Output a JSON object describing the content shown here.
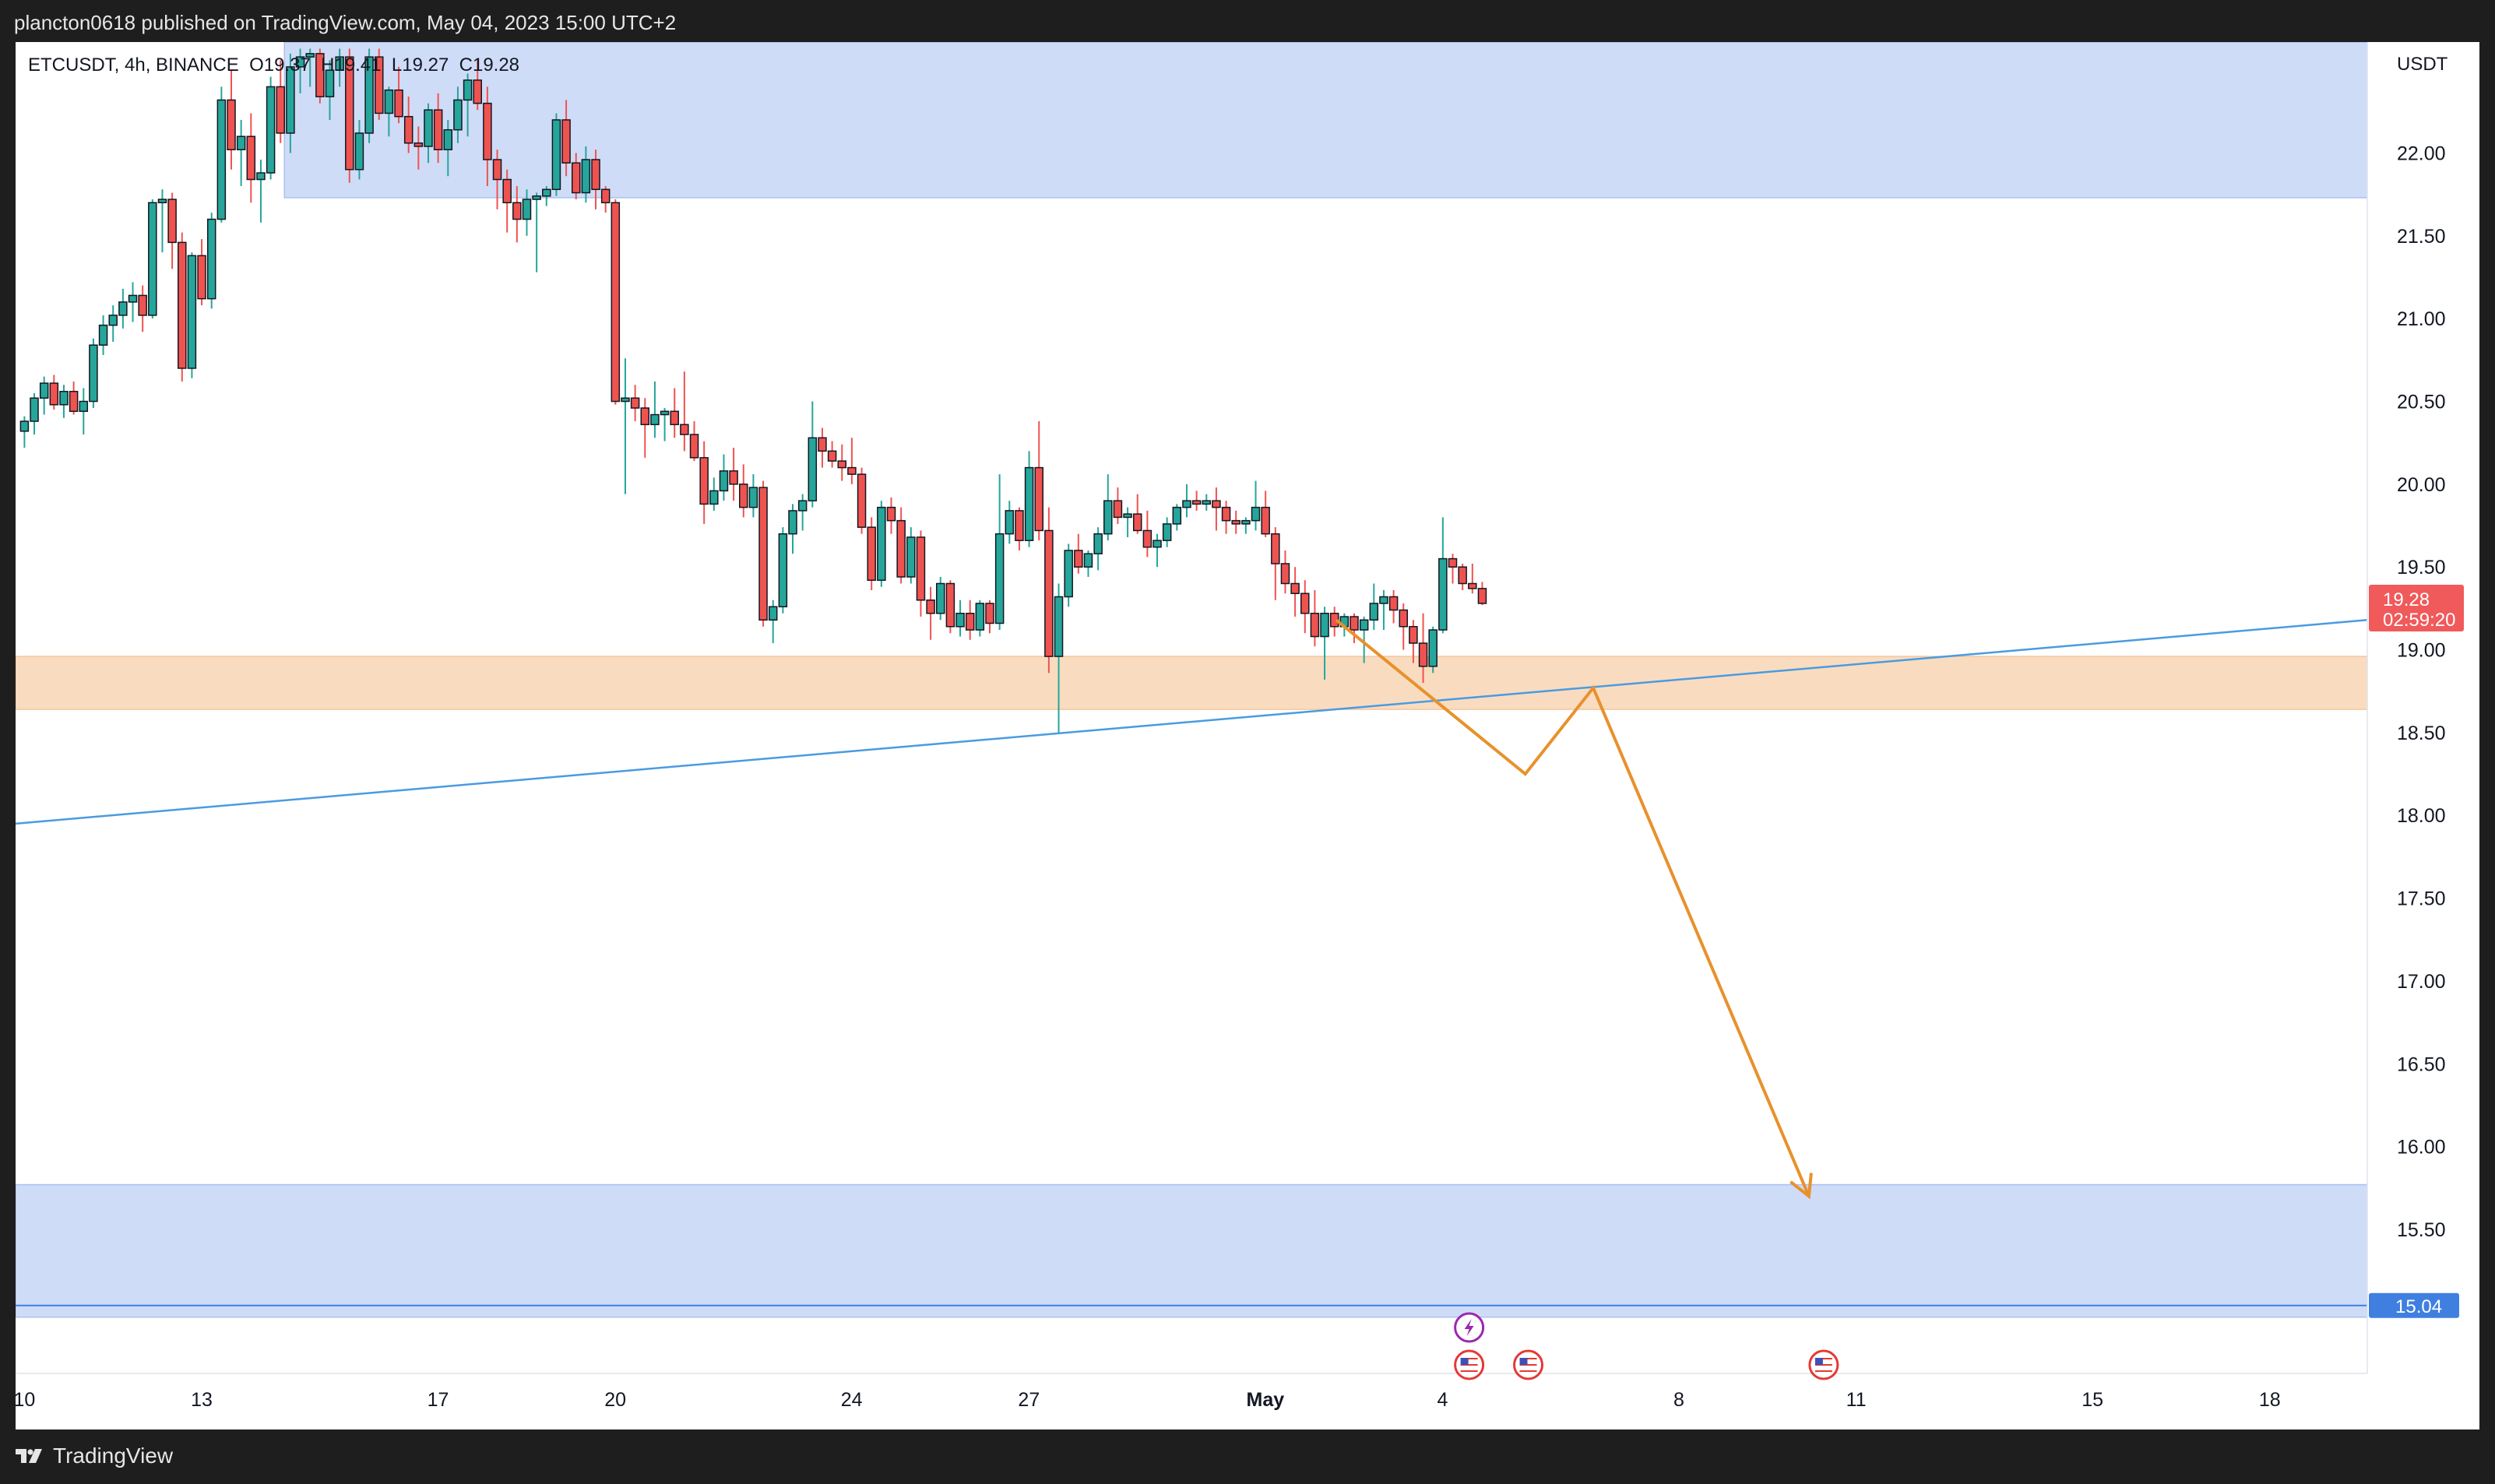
{
  "header": {
    "published_by": "plancton0618 published on TradingView.com, May 04, 2023 15:00 UTC+2"
  },
  "footer": {
    "brand": "TradingView"
  },
  "colors": {
    "up": "#26a69a",
    "down": "#ef5350",
    "zone_blue": "#cfdcf7",
    "zone_orange": "#f9dcc0",
    "trend": "#4a9be0",
    "projection": "#e8912c",
    "price_tag": "#f05a5a",
    "level_tag": "#3f7fe0"
  },
  "chart_data": {
    "type": "candlestick",
    "symbol": "ETCUSDT",
    "interval": "4h",
    "exchange": "BINANCE",
    "ohlc_legend": {
      "open": "O19.37",
      "high": "H19.41",
      "low": "L19.27",
      "close": "C19.28"
    },
    "legend_text": {
      "symbol": "ETCUSDT, 4h, BINANCE",
      "open": "O19.37",
      "high": "H19.41",
      "low": "L19.27",
      "close": "C19.28"
    },
    "currency": "USDT",
    "y_range": [
      14.63,
      22.67
    ],
    "y_ticks": [
      "22.00",
      "21.50",
      "21.00",
      "20.50",
      "20.00",
      "19.50",
      "19.00",
      "18.50",
      "18.00",
      "17.50",
      "17.00",
      "16.50",
      "16.00",
      "15.50"
    ],
    "x_range": [
      -0.15,
      39.65
    ],
    "x_ticks": [
      {
        "label": "10",
        "day": 0
      },
      {
        "label": "13",
        "day": 3
      },
      {
        "label": "17",
        "day": 7
      },
      {
        "label": "20",
        "day": 10
      },
      {
        "label": "24",
        "day": 14
      },
      {
        "label": "27",
        "day": 17
      },
      {
        "label": "May",
        "day": 21,
        "bold": true
      },
      {
        "label": "4",
        "day": 24
      },
      {
        "label": "8",
        "day": 28
      },
      {
        "label": "11",
        "day": 31
      },
      {
        "label": "15",
        "day": 35
      },
      {
        "label": "18",
        "day": 38
      }
    ],
    "current_price": {
      "value": 19.28,
      "label": "19.28",
      "countdown": "02:59:20"
    },
    "level_line": {
      "value": 15.04,
      "label": "15.04"
    },
    "zones": [
      {
        "name": "supply-zone-top",
        "x_from": 4.4,
        "x_to": 39.65,
        "y_from": 21.73,
        "y_to": 22.67,
        "color": "#cfdcf7"
      },
      {
        "name": "support-zone-orange",
        "x_from": -0.15,
        "x_to": 39.65,
        "y_from": 18.64,
        "y_to": 18.96,
        "color": "#f9dcc0"
      },
      {
        "name": "demand-zone-bottom",
        "x_from": -0.15,
        "x_to": 39.65,
        "y_from": 14.97,
        "y_to": 15.77,
        "color": "#cfdcf7"
      }
    ],
    "trendline": {
      "from": {
        "day": -0.15,
        "price": 17.95
      },
      "to": {
        "day": 39.65,
        "price": 19.18
      }
    },
    "projection_path": [
      {
        "day": 22.2,
        "price": 19.18
      },
      {
        "day": 25.4,
        "price": 18.25
      },
      {
        "day": 26.55,
        "price": 18.77
      },
      {
        "day": 30.2,
        "price": 15.7
      }
    ],
    "event_icons": [
      {
        "name": "lightning-icon",
        "day": 24.45,
        "kind": "lightning"
      },
      {
        "name": "us-flag-icon",
        "day": 24.45,
        "kind": "flag"
      },
      {
        "name": "us-flag-icon",
        "day": 25.45,
        "kind": "flag"
      },
      {
        "name": "us-flag-icon",
        "day": 30.45,
        "kind": "flag"
      }
    ],
    "candles_start_day": 0.0,
    "candles_step_day": 0.1667,
    "candles": [
      [
        20.32,
        20.41,
        20.22,
        20.38
      ],
      [
        20.38,
        20.55,
        20.3,
        20.52
      ],
      [
        20.52,
        20.65,
        20.42,
        20.61
      ],
      [
        20.61,
        20.66,
        20.45,
        20.48
      ],
      [
        20.48,
        20.6,
        20.4,
        20.56
      ],
      [
        20.56,
        20.62,
        20.42,
        20.44
      ],
      [
        20.44,
        20.58,
        20.3,
        20.5
      ],
      [
        20.5,
        20.88,
        20.46,
        20.84
      ],
      [
        20.84,
        21.02,
        20.78,
        20.96
      ],
      [
        20.96,
        21.08,
        20.86,
        21.02
      ],
      [
        21.02,
        21.18,
        20.94,
        21.1
      ],
      [
        21.1,
        21.22,
        20.98,
        21.14
      ],
      [
        21.14,
        21.2,
        20.92,
        21.02
      ],
      [
        21.02,
        21.72,
        21.0,
        21.7
      ],
      [
        21.7,
        21.78,
        21.4,
        21.72
      ],
      [
        21.72,
        21.76,
        21.3,
        21.46
      ],
      [
        21.46,
        21.52,
        20.62,
        20.7
      ],
      [
        20.7,
        21.4,
        20.64,
        21.38
      ],
      [
        21.38,
        21.48,
        21.08,
        21.12
      ],
      [
        21.12,
        21.64,
        21.06,
        21.6
      ],
      [
        21.6,
        22.4,
        21.58,
        22.32
      ],
      [
        22.32,
        22.5,
        21.9,
        22.02
      ],
      [
        22.02,
        22.2,
        21.8,
        22.1
      ],
      [
        22.1,
        22.24,
        21.7,
        21.84
      ],
      [
        21.84,
        21.96,
        21.58,
        21.88
      ],
      [
        21.88,
        22.46,
        21.84,
        22.4
      ],
      [
        22.4,
        22.56,
        22.06,
        22.12
      ],
      [
        22.12,
        22.6,
        22.0,
        22.52
      ],
      [
        22.52,
        22.63,
        22.36,
        22.58
      ],
      [
        22.58,
        22.63,
        22.4,
        22.6
      ],
      [
        22.6,
        22.63,
        22.3,
        22.34
      ],
      [
        22.34,
        22.56,
        22.2,
        22.5
      ],
      [
        22.5,
        22.63,
        22.4,
        22.58
      ],
      [
        22.58,
        22.63,
        21.82,
        21.9
      ],
      [
        21.9,
        22.2,
        21.84,
        22.12
      ],
      [
        22.12,
        22.63,
        22.06,
        22.58
      ],
      [
        22.58,
        22.63,
        22.2,
        22.24
      ],
      [
        22.24,
        22.4,
        22.1,
        22.38
      ],
      [
        22.38,
        22.52,
        22.18,
        22.22
      ],
      [
        22.22,
        22.34,
        22.0,
        22.06
      ],
      [
        22.06,
        22.16,
        21.9,
        22.04
      ],
      [
        22.04,
        22.3,
        21.94,
        22.26
      ],
      [
        22.26,
        22.36,
        21.94,
        22.02
      ],
      [
        22.02,
        22.2,
        21.86,
        22.14
      ],
      [
        22.14,
        22.4,
        22.06,
        22.32
      ],
      [
        22.32,
        22.48,
        22.1,
        22.44
      ],
      [
        22.44,
        22.56,
        22.26,
        22.3
      ],
      [
        22.3,
        22.4,
        21.8,
        21.96
      ],
      [
        21.96,
        22.02,
        21.66,
        21.84
      ],
      [
        21.84,
        21.9,
        21.52,
        21.7
      ],
      [
        21.7,
        21.8,
        21.46,
        21.6
      ],
      [
        21.6,
        21.78,
        21.5,
        21.72
      ],
      [
        21.72,
        21.76,
        21.28,
        21.74
      ],
      [
        21.74,
        21.8,
        21.68,
        21.78
      ],
      [
        21.78,
        22.24,
        21.74,
        22.2
      ],
      [
        22.2,
        22.32,
        21.86,
        21.94
      ],
      [
        21.94,
        22.0,
        21.72,
        21.76
      ],
      [
        21.76,
        22.04,
        21.7,
        21.96
      ],
      [
        21.96,
        22.02,
        21.66,
        21.78
      ],
      [
        21.78,
        21.8,
        21.64,
        21.7
      ],
      [
        21.7,
        21.72,
        20.48,
        20.5
      ],
      [
        20.5,
        20.76,
        19.94,
        20.52
      ],
      [
        20.52,
        20.6,
        20.38,
        20.46
      ],
      [
        20.46,
        20.52,
        20.16,
        20.36
      ],
      [
        20.36,
        20.62,
        20.28,
        20.42
      ],
      [
        20.42,
        20.46,
        20.26,
        20.44
      ],
      [
        20.44,
        20.58,
        20.28,
        20.36
      ],
      [
        20.36,
        20.68,
        20.2,
        20.3
      ],
      [
        20.3,
        20.38,
        20.14,
        20.16
      ],
      [
        20.16,
        20.26,
        19.76,
        19.88
      ],
      [
        19.88,
        20.04,
        19.84,
        19.96
      ],
      [
        19.96,
        20.18,
        19.9,
        20.08
      ],
      [
        20.08,
        20.22,
        19.9,
        20.0
      ],
      [
        20.0,
        20.12,
        19.8,
        19.86
      ],
      [
        19.86,
        20.06,
        19.8,
        19.98
      ],
      [
        19.98,
        20.02,
        19.14,
        19.18
      ],
      [
        19.18,
        19.3,
        19.04,
        19.26
      ],
      [
        19.26,
        19.74,
        19.22,
        19.7
      ],
      [
        19.7,
        19.88,
        19.58,
        19.84
      ],
      [
        19.84,
        19.94,
        19.72,
        19.9
      ],
      [
        19.9,
        20.5,
        19.86,
        20.28
      ],
      [
        20.28,
        20.34,
        20.1,
        20.2
      ],
      [
        20.2,
        20.26,
        20.1,
        20.14
      ],
      [
        20.14,
        20.24,
        20.02,
        20.1
      ],
      [
        20.1,
        20.28,
        20.0,
        20.06
      ],
      [
        20.06,
        20.1,
        19.7,
        19.74
      ],
      [
        19.74,
        19.8,
        19.36,
        19.42
      ],
      [
        19.42,
        19.9,
        19.38,
        19.86
      ],
      [
        19.86,
        19.92,
        19.7,
        19.78
      ],
      [
        19.78,
        19.86,
        19.4,
        19.44
      ],
      [
        19.44,
        19.74,
        19.4,
        19.68
      ],
      [
        19.68,
        19.72,
        19.2,
        19.3
      ],
      [
        19.3,
        19.38,
        19.06,
        19.22
      ],
      [
        19.22,
        19.44,
        19.18,
        19.4
      ],
      [
        19.4,
        19.42,
        19.1,
        19.14
      ],
      [
        19.14,
        19.3,
        19.08,
        19.22
      ],
      [
        19.22,
        19.3,
        19.06,
        19.12
      ],
      [
        19.12,
        19.3,
        19.08,
        19.28
      ],
      [
        19.28,
        19.3,
        19.1,
        19.16
      ],
      [
        19.16,
        20.06,
        19.12,
        19.7
      ],
      [
        19.7,
        19.9,
        19.64,
        19.84
      ],
      [
        19.84,
        19.86,
        19.6,
        19.66
      ],
      [
        19.66,
        20.2,
        19.62,
        20.1
      ],
      [
        20.1,
        20.38,
        19.66,
        19.72
      ],
      [
        19.72,
        19.86,
        18.86,
        18.96
      ],
      [
        18.96,
        19.4,
        18.5,
        19.32
      ],
      [
        19.32,
        19.64,
        19.26,
        19.6
      ],
      [
        19.6,
        19.7,
        19.46,
        19.5
      ],
      [
        19.5,
        19.6,
        19.44,
        19.58
      ],
      [
        19.58,
        19.74,
        19.48,
        19.7
      ],
      [
        19.7,
        20.06,
        19.66,
        19.9
      ],
      [
        19.9,
        19.98,
        19.76,
        19.8
      ],
      [
        19.8,
        19.86,
        19.68,
        19.82
      ],
      [
        19.82,
        19.94,
        19.7,
        19.72
      ],
      [
        19.72,
        19.84,
        19.56,
        19.62
      ],
      [
        19.62,
        19.7,
        19.5,
        19.66
      ],
      [
        19.66,
        19.8,
        19.62,
        19.76
      ],
      [
        19.76,
        19.88,
        19.72,
        19.86
      ],
      [
        19.86,
        20.0,
        19.8,
        19.9
      ],
      [
        19.9,
        19.96,
        19.84,
        19.88
      ],
      [
        19.88,
        19.94,
        19.84,
        19.9
      ],
      [
        19.9,
        19.98,
        19.72,
        19.86
      ],
      [
        19.86,
        19.9,
        19.7,
        19.78
      ],
      [
        19.78,
        19.84,
        19.7,
        19.76
      ],
      [
        19.76,
        19.8,
        19.7,
        19.78
      ],
      [
        19.78,
        20.02,
        19.72,
        19.86
      ],
      [
        19.86,
        19.96,
        19.68,
        19.7
      ],
      [
        19.7,
        19.74,
        19.3,
        19.52
      ],
      [
        19.52,
        19.6,
        19.34,
        19.4
      ],
      [
        19.4,
        19.5,
        19.2,
        19.34
      ],
      [
        19.34,
        19.42,
        19.1,
        19.22
      ],
      [
        19.22,
        19.36,
        19.02,
        19.08
      ],
      [
        19.08,
        19.26,
        18.82,
        19.22
      ],
      [
        19.22,
        19.26,
        19.08,
        19.14
      ],
      [
        19.14,
        19.22,
        19.08,
        19.2
      ],
      [
        19.2,
        19.22,
        19.04,
        19.12
      ],
      [
        19.12,
        19.2,
        18.92,
        19.18
      ],
      [
        19.18,
        19.4,
        19.12,
        19.28
      ],
      [
        19.28,
        19.36,
        19.12,
        19.32
      ],
      [
        19.32,
        19.36,
        19.16,
        19.24
      ],
      [
        19.24,
        19.28,
        19.0,
        19.14
      ],
      [
        19.14,
        19.18,
        18.92,
        19.04
      ],
      [
        19.04,
        19.22,
        18.8,
        18.9
      ],
      [
        18.9,
        19.14,
        18.86,
        19.12
      ],
      [
        19.12,
        19.8,
        19.1,
        19.55
      ],
      [
        19.55,
        19.58,
        19.4,
        19.5
      ],
      [
        19.5,
        19.52,
        19.36,
        19.4
      ],
      [
        19.4,
        19.52,
        19.34,
        19.37
      ],
      [
        19.37,
        19.41,
        19.27,
        19.28
      ]
    ]
  }
}
